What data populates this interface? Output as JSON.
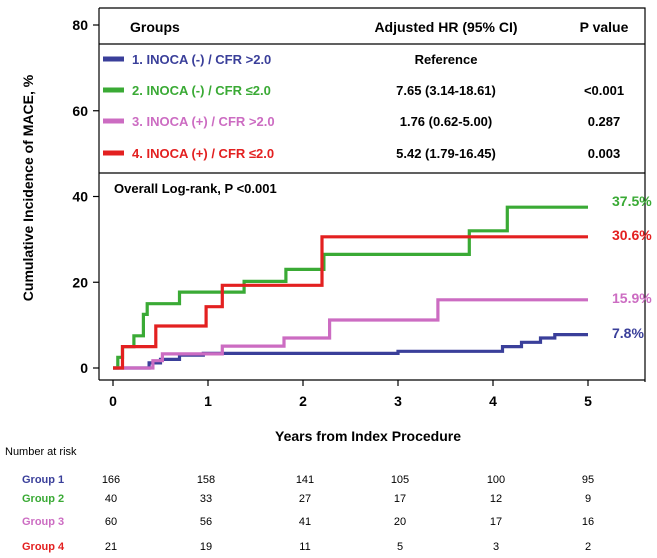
{
  "chart_data": {
    "type": "line",
    "step": true,
    "title": "",
    "xlabel": "Years from Index Procedure",
    "ylabel": "Cumulative Incidence of MACE, %",
    "xlim": [
      0,
      5
    ],
    "ylim": [
      0,
      80
    ],
    "x_ticks": [
      "0",
      "1",
      "2",
      "3",
      "4",
      "5"
    ],
    "y_ticks": [
      "0",
      "20",
      "40",
      "60",
      "80"
    ],
    "grid": false,
    "table": {
      "headers": [
        "Groups",
        "Adjusted HR (95% CI)",
        "P value"
      ],
      "rows": [
        {
          "group": "1. INOCA (-) / CFR >2.0",
          "hr": "Reference",
          "p": ""
        },
        {
          "group": "2. INOCA (-) / CFR ≤2.0",
          "hr": "7.65 (3.14-18.61)",
          "p": "<0.001"
        },
        {
          "group": "3. INOCA (+) / CFR >2.0",
          "hr": "1.76 (0.62-5.00)",
          "p": "0.287"
        },
        {
          "group": "4. INOCA (+) / CFR ≤2.0",
          "hr": "5.42 (1.79-16.45)",
          "p": "0.003"
        }
      ]
    },
    "logrank": "Overall Log-rank, P <0.001",
    "series": [
      {
        "name": "1. INOCA (-) / CFR >2.0",
        "color": "#3a3f9a",
        "end_label": "7.8%",
        "points": [
          [
            0,
            0
          ],
          [
            0.38,
            0
          ],
          [
            0.38,
            1.2
          ],
          [
            0.5,
            1.2
          ],
          [
            0.5,
            2.0
          ],
          [
            0.7,
            2.0
          ],
          [
            0.7,
            3.0
          ],
          [
            0.95,
            3.0
          ],
          [
            0.95,
            3.4
          ],
          [
            3.0,
            3.4
          ],
          [
            3.0,
            3.9
          ],
          [
            4.1,
            3.9
          ],
          [
            4.1,
            5.0
          ],
          [
            4.3,
            5.0
          ],
          [
            4.3,
            6.0
          ],
          [
            4.5,
            6.0
          ],
          [
            4.5,
            7.0
          ],
          [
            4.65,
            7.0
          ],
          [
            4.65,
            7.8
          ],
          [
            5.0,
            7.8
          ]
        ]
      },
      {
        "name": "2. INOCA (-) / CFR ≤2.0",
        "color": "#3aaa35",
        "end_label": "37.5%",
        "points": [
          [
            0,
            0
          ],
          [
            0.05,
            0
          ],
          [
            0.05,
            2.5
          ],
          [
            0.1,
            2.5
          ],
          [
            0.1,
            5.0
          ],
          [
            0.22,
            5.0
          ],
          [
            0.22,
            7.5
          ],
          [
            0.32,
            7.5
          ],
          [
            0.32,
            12.5
          ],
          [
            0.36,
            12.5
          ],
          [
            0.36,
            15.0
          ],
          [
            0.7,
            15.0
          ],
          [
            0.7,
            17.7
          ],
          [
            1.38,
            17.7
          ],
          [
            1.38,
            20.2
          ],
          [
            1.82,
            20.2
          ],
          [
            1.82,
            23.0
          ],
          [
            2.22,
            23.0
          ],
          [
            2.22,
            26.5
          ],
          [
            3.75,
            26.5
          ],
          [
            3.75,
            32.0
          ],
          [
            4.15,
            32.0
          ],
          [
            4.15,
            37.5
          ],
          [
            5.0,
            37.5
          ]
        ]
      },
      {
        "name": "3. INOCA (+) / CFR >2.0",
        "color": "#cc6cc2",
        "end_label": "15.9%",
        "points": [
          [
            0,
            0
          ],
          [
            0.42,
            0
          ],
          [
            0.42,
            1.7
          ],
          [
            0.52,
            1.7
          ],
          [
            0.52,
            3.3
          ],
          [
            1.15,
            3.3
          ],
          [
            1.15,
            5.1
          ],
          [
            1.8,
            5.1
          ],
          [
            1.8,
            7.0
          ],
          [
            2.28,
            7.0
          ],
          [
            2.28,
            11.2
          ],
          [
            3.42,
            11.2
          ],
          [
            3.42,
            15.9
          ],
          [
            5.0,
            15.9
          ]
        ]
      },
      {
        "name": "4. INOCA (+) / CFR ≤2.0",
        "color": "#e32020",
        "end_label": "30.6%",
        "points": [
          [
            0,
            0
          ],
          [
            0.1,
            0
          ],
          [
            0.1,
            5.0
          ],
          [
            0.45,
            5.0
          ],
          [
            0.45,
            9.8
          ],
          [
            0.98,
            9.8
          ],
          [
            0.98,
            14.3
          ],
          [
            1.15,
            14.3
          ],
          [
            1.15,
            19.3
          ],
          [
            2.2,
            19.3
          ],
          [
            2.2,
            30.6
          ],
          [
            5.0,
            30.6
          ]
        ]
      }
    ],
    "risk_table": {
      "title": "Number at risk",
      "times": [
        0,
        1,
        2,
        3,
        4,
        5
      ],
      "rows": [
        {
          "label": "Group 1",
          "color": "#3a3f9a",
          "values": [
            "166",
            "158",
            "141",
            "105",
            "100",
            "95"
          ]
        },
        {
          "label": "Group 2",
          "color": "#3aaa35",
          "values": [
            "40",
            "33",
            "27",
            "17",
            "12",
            "9"
          ]
        },
        {
          "label": "Group 3",
          "color": "#cc6cc2",
          "values": [
            "60",
            "56",
            "41",
            "20",
            "17",
            "16"
          ]
        },
        {
          "label": "Group 4",
          "color": "#e32020",
          "values": [
            "21",
            "19",
            "11",
            "5",
            "3",
            "2"
          ]
        }
      ]
    }
  }
}
